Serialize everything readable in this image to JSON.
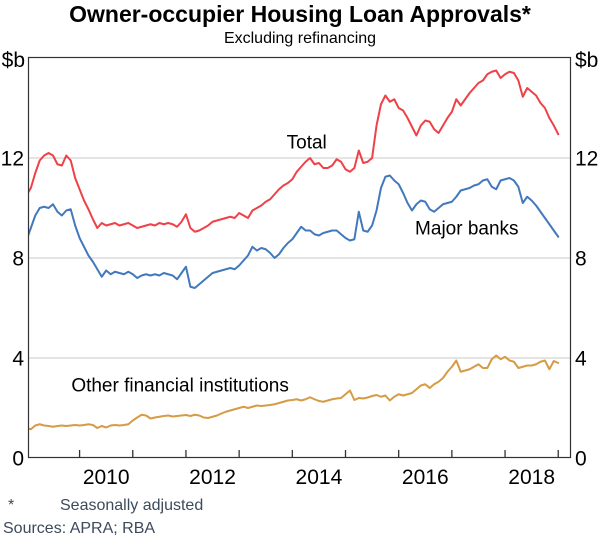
{
  "chart_data": {
    "type": "line",
    "title": "Owner-occupier Housing Loan Approvals*",
    "subtitle": "Excluding refinancing",
    "unit_label": "$b",
    "footnote_marker": "*",
    "footnote": "Seasonally adjusted",
    "sources": "Sources: APRA; RBA",
    "frequency": "monthly",
    "x_start": 2009.0,
    "points_per_year": 12,
    "x_axis": {
      "domain": [
        2009.03,
        2019.24
      ],
      "year_ticks": [
        2010,
        2011,
        2012,
        2013,
        2014,
        2015,
        2016,
        2017,
        2018,
        2019
      ],
      "year_labels": [
        {
          "text": "2010",
          "t": 2010.5
        },
        {
          "text": "2012",
          "t": 2012.5
        },
        {
          "text": "2014",
          "t": 2014.5
        },
        {
          "text": "2016",
          "t": 2016.5
        },
        {
          "text": "2018",
          "t": 2018.5
        }
      ]
    },
    "y_axis": {
      "domain": [
        0,
        16
      ],
      "ticks": [
        0,
        4,
        8,
        12
      ],
      "gridlines": [
        4,
        8,
        12
      ],
      "grid_color": "#c9c9c9"
    },
    "frame_color": "#333333",
    "series": [
      {
        "name": "Total",
        "color": "#ee4148",
        "label": {
          "text": "Total",
          "t": 2014.27,
          "v": 12.65
        },
        "values": [
          10.5,
          10.8,
          11.4,
          11.9,
          12.1,
          12.2,
          12.1,
          11.75,
          11.7,
          12.1,
          11.9,
          11.2,
          10.75,
          10.3,
          9.95,
          9.55,
          9.2,
          9.4,
          9.3,
          9.35,
          9.4,
          9.3,
          9.35,
          9.4,
          9.3,
          9.2,
          9.25,
          9.3,
          9.35,
          9.3,
          9.4,
          9.35,
          9.4,
          9.35,
          9.25,
          9.45,
          9.75,
          9.2,
          9.05,
          9.1,
          9.2,
          9.3,
          9.45,
          9.5,
          9.55,
          9.6,
          9.65,
          9.6,
          9.8,
          9.7,
          9.6,
          9.9,
          10.0,
          10.1,
          10.25,
          10.35,
          10.55,
          10.75,
          10.9,
          11.0,
          11.15,
          11.45,
          11.65,
          11.85,
          12.0,
          11.75,
          11.8,
          11.6,
          11.6,
          11.7,
          11.95,
          11.85,
          11.55,
          11.45,
          11.6,
          12.3,
          11.8,
          11.85,
          12.0,
          13.3,
          14.15,
          14.5,
          14.25,
          14.35,
          14.0,
          13.9,
          13.6,
          13.25,
          12.9,
          13.3,
          13.5,
          13.45,
          13.15,
          13.0,
          13.3,
          13.6,
          13.85,
          14.35,
          14.1,
          14.35,
          14.6,
          14.8,
          15.0,
          15.1,
          15.35,
          15.45,
          15.5,
          15.2,
          15.35,
          15.45,
          15.4,
          15.1,
          14.45,
          14.8,
          14.65,
          14.5,
          14.2,
          14.0,
          13.6,
          13.3,
          12.95
        ]
      },
      {
        "name": "Major banks",
        "color": "#4279bd",
        "label": {
          "text": "Major banks",
          "t": 2017.28,
          "v": 9.2
        },
        "values": [
          8.7,
          9.2,
          9.7,
          10.0,
          10.05,
          10.0,
          10.15,
          9.85,
          9.7,
          9.9,
          9.95,
          9.3,
          8.8,
          8.45,
          8.1,
          7.85,
          7.55,
          7.25,
          7.5,
          7.35,
          7.45,
          7.4,
          7.35,
          7.45,
          7.35,
          7.2,
          7.3,
          7.35,
          7.3,
          7.35,
          7.3,
          7.4,
          7.35,
          7.3,
          7.15,
          7.4,
          7.65,
          6.85,
          6.8,
          6.95,
          7.1,
          7.25,
          7.4,
          7.45,
          7.5,
          7.55,
          7.6,
          7.55,
          7.7,
          7.9,
          8.1,
          8.45,
          8.3,
          8.4,
          8.35,
          8.2,
          8.0,
          8.15,
          8.4,
          8.6,
          8.75,
          9.0,
          9.25,
          9.1,
          9.1,
          8.95,
          8.9,
          9.0,
          9.05,
          9.1,
          9.1,
          8.95,
          8.8,
          8.7,
          8.75,
          9.85,
          9.1,
          9.05,
          9.3,
          9.9,
          10.8,
          11.25,
          11.3,
          11.1,
          10.95,
          10.6,
          10.2,
          9.9,
          10.15,
          10.3,
          10.25,
          9.95,
          9.85,
          10.0,
          10.15,
          10.2,
          10.25,
          10.45,
          10.7,
          10.75,
          10.8,
          10.9,
          10.95,
          11.1,
          11.15,
          10.85,
          10.75,
          11.1,
          11.15,
          11.2,
          11.1,
          10.85,
          10.2,
          10.45,
          10.3,
          10.1,
          9.85,
          9.6,
          9.35,
          9.1,
          8.85
        ]
      },
      {
        "name": "Other financial institutions",
        "color": "#d59b45",
        "label": {
          "text": "Other financial institutions",
          "t": 2011.89,
          "v": 2.92
        },
        "values": [
          1.2,
          1.15,
          1.3,
          1.35,
          1.3,
          1.28,
          1.25,
          1.28,
          1.3,
          1.28,
          1.3,
          1.32,
          1.3,
          1.32,
          1.35,
          1.32,
          1.2,
          1.28,
          1.22,
          1.3,
          1.32,
          1.3,
          1.32,
          1.35,
          1.5,
          1.62,
          1.73,
          1.7,
          1.58,
          1.62,
          1.65,
          1.68,
          1.7,
          1.66,
          1.68,
          1.7,
          1.72,
          1.68,
          1.73,
          1.7,
          1.62,
          1.6,
          1.65,
          1.7,
          1.78,
          1.85,
          1.9,
          1.95,
          2.0,
          2.05,
          2.0,
          2.05,
          2.1,
          2.08,
          2.1,
          2.12,
          2.15,
          2.2,
          2.25,
          2.3,
          2.32,
          2.35,
          2.3,
          2.35,
          2.43,
          2.35,
          2.28,
          2.25,
          2.3,
          2.35,
          2.38,
          2.4,
          2.55,
          2.7,
          2.32,
          2.4,
          2.38,
          2.42,
          2.48,
          2.52,
          2.45,
          2.5,
          2.3,
          2.45,
          2.55,
          2.5,
          2.55,
          2.6,
          2.75,
          2.9,
          2.95,
          2.8,
          2.95,
          3.05,
          3.2,
          3.45,
          3.65,
          3.9,
          3.45,
          3.5,
          3.55,
          3.65,
          3.75,
          3.6,
          3.6,
          3.95,
          4.1,
          3.95,
          4.05,
          3.9,
          3.85,
          3.6,
          3.65,
          3.7,
          3.7,
          3.75,
          3.85,
          3.9,
          3.55,
          3.88,
          3.8
        ]
      }
    ]
  }
}
